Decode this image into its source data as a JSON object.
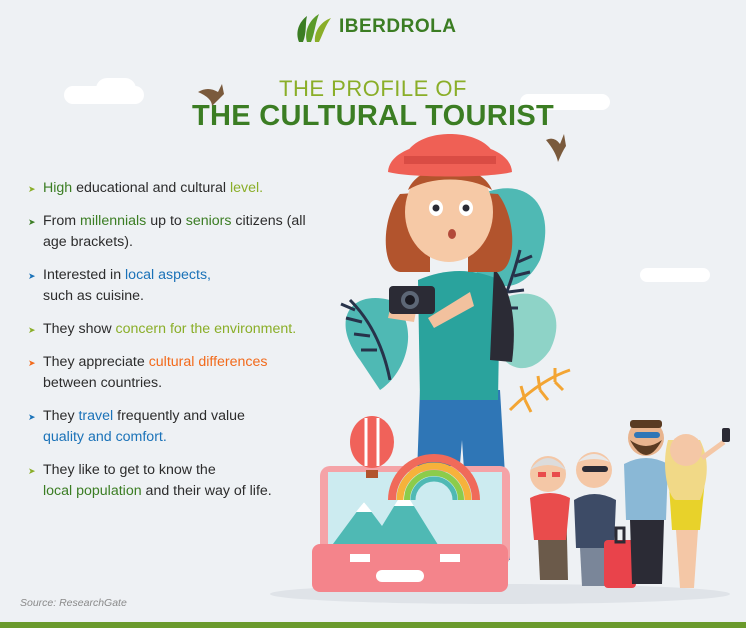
{
  "brand": {
    "name": "IBERDROLA",
    "color": "#3b7d23"
  },
  "title": {
    "line1": "THE PROFILE OF",
    "line2": "THE CULTURAL TOURIST"
  },
  "colors": {
    "green": "#8aae28",
    "dark_green": "#3b7d23",
    "blue": "#1a72b8",
    "orange": "#f26a1b"
  },
  "bullets": [
    {
      "arrow_color": "#8aae28",
      "parts": [
        {
          "text": "High",
          "highlight": "#3b7d23"
        },
        {
          "text": " educational and cultural "
        },
        {
          "text": "level.",
          "highlight": "#8aae28"
        }
      ]
    },
    {
      "arrow_color": "#3b7d23",
      "parts": [
        {
          "text": "From "
        },
        {
          "text": "millennials",
          "highlight": "#3b7d23"
        },
        {
          "text": " up to "
        },
        {
          "text": "seniors",
          "highlight": "#3b7d23"
        },
        {
          "text": " citizens (all age brackets)."
        }
      ]
    },
    {
      "arrow_color": "#1a72b8",
      "parts": [
        {
          "text": "Interested in "
        },
        {
          "text": "local aspects,",
          "highlight": "#1a72b8"
        },
        {
          "text": " such as cuisine."
        }
      ]
    },
    {
      "arrow_color": "#8aae28",
      "parts": [
        {
          "text": "They show "
        },
        {
          "text": "concern for the environment.",
          "highlight": "#8aae28"
        }
      ]
    },
    {
      "arrow_color": "#f26a1b",
      "parts": [
        {
          "text": "They appreciate "
        },
        {
          "text": "cultural differences",
          "highlight": "#f26a1b"
        },
        {
          "text": " between countries."
        }
      ]
    },
    {
      "arrow_color": "#1a72b8",
      "parts": [
        {
          "text": "They "
        },
        {
          "text": "travel",
          "highlight": "#1a72b8"
        },
        {
          "text": " frequently and value "
        },
        {
          "text": "quality and comfort.",
          "highlight": "#1a72b8"
        }
      ]
    },
    {
      "arrow_color": "#8aae28",
      "parts": [
        {
          "text": "They like to get to know the "
        },
        {
          "text": "local population",
          "highlight": "#3b7d23"
        },
        {
          "text": " and their way of life."
        }
      ]
    }
  ],
  "source": "Source: ResearchGate"
}
